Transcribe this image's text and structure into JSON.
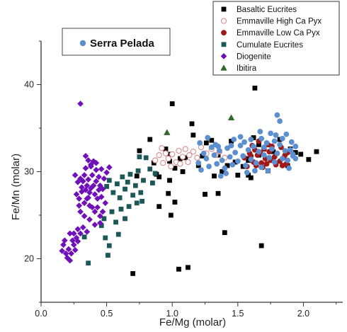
{
  "chart_data": {
    "type": "scatter",
    "xlabel": "Fe/Mg (molar)",
    "ylabel": "Fe/Mn (molar)",
    "xlim": [
      0.0,
      2.3
    ],
    "ylim": [
      15,
      45
    ],
    "xticks": [
      "0.0",
      "0.5",
      "1.0",
      "1.5",
      "2.0"
    ],
    "yticks": [
      "20",
      "30",
      "40"
    ],
    "grid": false,
    "legend_placement": "top-right",
    "inset_legend": {
      "label": "Serra Pelada",
      "color": "#5b8fd0",
      "marker": "circle"
    },
    "series": [
      {
        "name": "Basaltic Eucrites",
        "marker": "square",
        "color": "#000000",
        "filled": true,
        "points": [
          [
            1.63,
            39.6
          ],
          [
            1.0,
            37.8
          ],
          [
            0.83,
            33.7
          ],
          [
            0.86,
            31.0
          ],
          [
            0.95,
            32.6
          ],
          [
            0.98,
            32.0
          ],
          [
            0.98,
            31.2
          ],
          [
            1.02,
            30.4
          ],
          [
            1.06,
            31.5
          ],
          [
            1.08,
            30.0
          ],
          [
            1.1,
            31.6
          ],
          [
            1.15,
            35.5
          ],
          [
            1.2,
            30.7
          ],
          [
            1.23,
            31.8
          ],
          [
            1.26,
            33.3
          ],
          [
            1.3,
            33.6
          ],
          [
            1.32,
            29.5
          ],
          [
            1.35,
            31.9
          ],
          [
            1.38,
            30.0
          ],
          [
            1.42,
            30.7
          ],
          [
            1.45,
            33.5
          ],
          [
            1.48,
            31.1
          ],
          [
            1.5,
            29.6
          ],
          [
            1.54,
            30.6
          ],
          [
            1.58,
            31.3
          ],
          [
            1.58,
            29.6
          ],
          [
            1.6,
            29.3
          ],
          [
            1.62,
            33.9
          ],
          [
            1.66,
            33.1
          ],
          [
            1.66,
            31.9
          ],
          [
            1.7,
            32.6
          ],
          [
            1.73,
            30.1
          ],
          [
            1.77,
            32.3
          ],
          [
            1.82,
            33.7
          ],
          [
            1.88,
            30.7
          ],
          [
            1.9,
            32.6
          ],
          [
            1.94,
            32.2
          ],
          [
            1.98,
            32.0
          ],
          [
            2.04,
            31.4
          ],
          [
            2.1,
            32.3
          ],
          [
            0.73,
            29.5
          ],
          [
            0.75,
            32.4
          ],
          [
            0.88,
            29.7
          ],
          [
            0.9,
            29.4
          ],
          [
            0.98,
            29.0
          ],
          [
            0.9,
            26.0
          ],
          [
            0.99,
            25.0
          ],
          [
            1.02,
            26.5
          ],
          [
            0.97,
            27.5
          ],
          [
            1.25,
            27.4
          ],
          [
            1.35,
            27.5
          ],
          [
            1.4,
            23.0
          ],
          [
            1.05,
            18.8
          ],
          [
            1.12,
            19.0
          ],
          [
            0.7,
            18.3
          ],
          [
            1.68,
            21.5
          ],
          [
            1.58,
            31.5
          ],
          [
            1.16,
            34.2
          ]
        ]
      },
      {
        "name": "Emmaville High Ca Pyx",
        "marker": "circle",
        "color": "#d98a8a",
        "filled": false,
        "points": [
          [
            0.87,
            31.3
          ],
          [
            0.9,
            31.9
          ],
          [
            0.93,
            31.0
          ],
          [
            0.95,
            32.1
          ],
          [
            0.97,
            31.5
          ],
          [
            1.0,
            32.0
          ],
          [
            1.03,
            31.1
          ],
          [
            1.05,
            32.4
          ],
          [
            1.08,
            31.7
          ],
          [
            1.1,
            32.6
          ],
          [
            1.13,
            31.9
          ],
          [
            1.16,
            32.3
          ],
          [
            1.19,
            31.6
          ],
          [
            1.22,
            32.8
          ],
          [
            1.26,
            32.1
          ],
          [
            1.3,
            32.6
          ],
          [
            1.33,
            31.9
          ],
          [
            1.36,
            32.3
          ],
          [
            1.4,
            31.6
          ],
          [
            0.92,
            32.7
          ],
          [
            0.99,
            30.6
          ],
          [
            1.06,
            30.9
          ],
          [
            1.12,
            31.1
          ]
        ]
      },
      {
        "name": "Emmaville Low Ca Pyx",
        "marker": "circle",
        "color": "#a01818",
        "filled": true,
        "points": [
          [
            1.55,
            31.6
          ],
          [
            1.57,
            30.6
          ],
          [
            1.59,
            32.1
          ],
          [
            1.61,
            33.0
          ],
          [
            1.62,
            31.1
          ],
          [
            1.63,
            32.5
          ],
          [
            1.64,
            30.7
          ],
          [
            1.65,
            31.9
          ],
          [
            1.66,
            33.5
          ],
          [
            1.67,
            32.2
          ],
          [
            1.68,
            31.0
          ],
          [
            1.7,
            32.6
          ],
          [
            1.71,
            31.5
          ],
          [
            1.72,
            30.9
          ],
          [
            1.74,
            32.3
          ],
          [
            1.75,
            31.3
          ],
          [
            1.76,
            32.9
          ],
          [
            1.78,
            31.7
          ],
          [
            1.79,
            30.8
          ],
          [
            1.8,
            32.1
          ],
          [
            1.82,
            31.2
          ],
          [
            1.83,
            32.8
          ],
          [
            1.85,
            31.6
          ],
          [
            1.87,
            30.9
          ],
          [
            1.88,
            32.2
          ],
          [
            1.86,
            31.9
          ],
          [
            1.84,
            30.7
          ],
          [
            1.73,
            33.1
          ],
          [
            1.69,
            30.5
          ],
          [
            1.6,
            31.8
          ]
        ]
      },
      {
        "name": "Cumulate Eucrites",
        "marker": "square",
        "color": "#1c5858",
        "filled": true,
        "points": [
          [
            0.48,
            24.6
          ],
          [
            0.5,
            28.3
          ],
          [
            0.52,
            29.0
          ],
          [
            0.55,
            27.6
          ],
          [
            0.58,
            28.6
          ],
          [
            0.6,
            27.0
          ],
          [
            0.62,
            29.4
          ],
          [
            0.64,
            28.0
          ],
          [
            0.66,
            28.8
          ],
          [
            0.68,
            29.7
          ],
          [
            0.7,
            27.3
          ],
          [
            0.72,
            28.4
          ],
          [
            0.74,
            30.1
          ],
          [
            0.76,
            27.6
          ],
          [
            0.78,
            29.0
          ],
          [
            0.8,
            31.6
          ],
          [
            0.83,
            30.3
          ],
          [
            0.85,
            28.7
          ],
          [
            0.87,
            29.8
          ],
          [
            0.46,
            23.8
          ],
          [
            0.49,
            22.4
          ],
          [
            0.51,
            20.4
          ],
          [
            0.54,
            25.4
          ],
          [
            0.57,
            24.2
          ],
          [
            0.59,
            22.8
          ],
          [
            0.61,
            25.7
          ],
          [
            0.64,
            24.6
          ],
          [
            0.67,
            26.0
          ],
          [
            0.73,
            26.4
          ],
          [
            0.77,
            26.6
          ],
          [
            0.36,
            19.5
          ],
          [
            0.33,
            22.5
          ],
          [
            0.52,
            21.5
          ],
          [
            0.75,
            31.7
          ]
        ]
      },
      {
        "name": "Diogenite",
        "marker": "diamond",
        "color": "#7010b8",
        "filled": true,
        "points": [
          [
            0.3,
            37.8
          ],
          [
            0.34,
            31.8
          ],
          [
            0.36,
            31.3
          ],
          [
            0.38,
            30.8
          ],
          [
            0.4,
            31.2
          ],
          [
            0.42,
            30.2
          ],
          [
            0.44,
            29.4
          ],
          [
            0.46,
            30.3
          ],
          [
            0.48,
            29.2
          ],
          [
            0.5,
            29.9
          ],
          [
            0.52,
            30.5
          ],
          [
            0.26,
            29.6
          ],
          [
            0.28,
            28.8
          ],
          [
            0.3,
            29.2
          ],
          [
            0.31,
            28.2
          ],
          [
            0.32,
            28.9
          ],
          [
            0.33,
            29.6
          ],
          [
            0.34,
            27.9
          ],
          [
            0.35,
            28.4
          ],
          [
            0.36,
            29.1
          ],
          [
            0.37,
            27.6
          ],
          [
            0.38,
            28.1
          ],
          [
            0.39,
            29.6
          ],
          [
            0.4,
            28.4
          ],
          [
            0.41,
            27.4
          ],
          [
            0.42,
            28.9
          ],
          [
            0.43,
            26.9
          ],
          [
            0.44,
            27.9
          ],
          [
            0.45,
            28.4
          ],
          [
            0.46,
            27.1
          ],
          [
            0.27,
            27.4
          ],
          [
            0.29,
            26.9
          ],
          [
            0.31,
            27.7
          ],
          [
            0.33,
            26.4
          ],
          [
            0.35,
            26.9
          ],
          [
            0.37,
            26.1
          ],
          [
            0.39,
            25.9
          ],
          [
            0.41,
            25.4
          ],
          [
            0.43,
            25.9
          ],
          [
            0.45,
            24.9
          ],
          [
            0.47,
            25.4
          ],
          [
            0.49,
            26.4
          ],
          [
            0.29,
            26.1
          ],
          [
            0.33,
            24.9
          ],
          [
            0.37,
            24.5
          ],
          [
            0.41,
            23.9
          ],
          [
            0.45,
            24.1
          ],
          [
            0.3,
            25.4
          ],
          [
            0.32,
            23.6
          ],
          [
            0.35,
            23.1
          ],
          [
            0.25,
            22.9
          ],
          [
            0.28,
            23.4
          ],
          [
            0.22,
            22.9
          ],
          [
            0.24,
            22.1
          ],
          [
            0.27,
            22.4
          ],
          [
            0.3,
            22.9
          ],
          [
            0.17,
            21.6
          ],
          [
            0.19,
            20.6
          ],
          [
            0.21,
            21.1
          ],
          [
            0.16,
            20.9
          ],
          [
            0.18,
            22.1
          ],
          [
            0.2,
            20.1
          ],
          [
            0.23,
            20.6
          ],
          [
            0.25,
            21.6
          ],
          [
            0.22,
            19.8
          ],
          [
            0.26,
            21.0
          ],
          [
            0.28,
            22.0
          ],
          [
            0.34,
            30.4
          ],
          [
            0.38,
            30.6
          ],
          [
            0.42,
            31.0
          ],
          [
            0.47,
            28.0
          ],
          [
            0.36,
            27.0
          ]
        ]
      },
      {
        "name": "Ibitira",
        "marker": "triangle",
        "color": "#2f6a2a",
        "filled": true,
        "points": [
          [
            1.45,
            36.2
          ],
          [
            0.96,
            34.5
          ]
        ]
      },
      {
        "name": "Serra Pelada",
        "marker": "circle",
        "color": "#5b8fd0",
        "filled": true,
        "points": [
          [
            1.2,
            31.0
          ],
          [
            1.22,
            30.2
          ],
          [
            1.24,
            32.1
          ],
          [
            1.26,
            31.5
          ],
          [
            1.28,
            30.6
          ],
          [
            1.3,
            32.8
          ],
          [
            1.32,
            31.9
          ],
          [
            1.34,
            30.9
          ],
          [
            1.36,
            32.4
          ],
          [
            1.38,
            31.3
          ],
          [
            1.4,
            30.4
          ],
          [
            1.42,
            32.7
          ],
          [
            1.44,
            31.7
          ],
          [
            1.46,
            30.8
          ],
          [
            1.48,
            32.2
          ],
          [
            1.5,
            31.2
          ],
          [
            1.52,
            33.0
          ],
          [
            1.54,
            31.8
          ],
          [
            1.56,
            30.7
          ],
          [
            1.58,
            32.5
          ],
          [
            1.6,
            31.4
          ],
          [
            1.62,
            32.9
          ],
          [
            1.64,
            31.0
          ],
          [
            1.66,
            32.3
          ],
          [
            1.68,
            30.5
          ],
          [
            1.7,
            31.9
          ],
          [
            1.72,
            33.3
          ],
          [
            1.74,
            31.6
          ],
          [
            1.76,
            32.6
          ],
          [
            1.78,
            31.1
          ],
          [
            1.8,
            32.1
          ],
          [
            1.82,
            33.1
          ],
          [
            1.84,
            31.5
          ],
          [
            1.86,
            32.4
          ],
          [
            1.88,
            31.3
          ],
          [
            1.9,
            32.5
          ],
          [
            1.92,
            31.8
          ],
          [
            1.94,
            32.9
          ],
          [
            1.84,
            33.8
          ],
          [
            1.79,
            34.2
          ],
          [
            1.8,
            36.5
          ],
          [
            1.82,
            35.8
          ],
          [
            1.75,
            34.4
          ],
          [
            1.68,
            33.8
          ],
          [
            1.55,
            33.4
          ],
          [
            1.47,
            33.7
          ],
          [
            1.27,
            33.9
          ],
          [
            1.33,
            33.1
          ],
          [
            1.41,
            29.8
          ],
          [
            1.57,
            29.9
          ],
          [
            1.73,
            30.1
          ],
          [
            1.89,
            30.4
          ],
          [
            1.37,
            29.5
          ],
          [
            1.63,
            30.1
          ],
          [
            1.21,
            33.3
          ],
          [
            1.52,
            34.0
          ],
          [
            1.67,
            34.6
          ],
          [
            1.35,
            32.9
          ],
          [
            1.45,
            33.0
          ],
          [
            1.94,
            31.5
          ],
          [
            1.91,
            33.4
          ],
          [
            1.6,
            33.7
          ],
          [
            1.87,
            34.3
          ],
          [
            1.7,
            32.8
          ],
          [
            1.78,
            33.5
          ],
          [
            1.92,
            32.0
          ]
        ]
      }
    ]
  }
}
